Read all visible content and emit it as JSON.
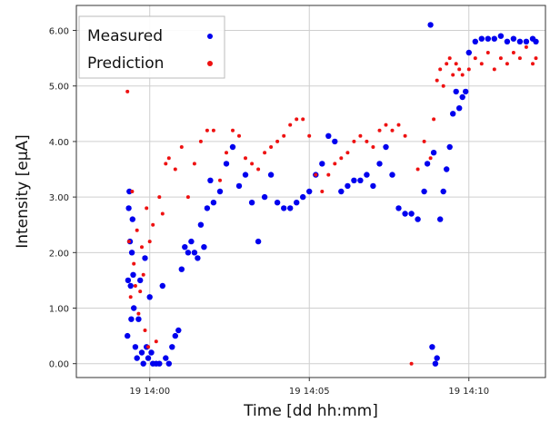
{
  "chart_data": {
    "type": "scatter",
    "xlabel": "Time [dd hh:mm]",
    "ylabel": "Intensity [eμA]",
    "x_unit": "minutes",
    "xlim": [
      -2.3,
      12.4
    ],
    "ylim": [
      -0.25,
      6.45
    ],
    "x_ticks": [
      {
        "value": 0,
        "label": "19 14:00"
      },
      {
        "value": 5,
        "label": "19 14:05"
      },
      {
        "value": 10,
        "label": "19 14:10"
      }
    ],
    "y_ticks": [
      {
        "value": 0,
        "label": "0.00"
      },
      {
        "value": 1,
        "label": "1.00"
      },
      {
        "value": 2,
        "label": "2.00"
      },
      {
        "value": 3,
        "label": "3.00"
      },
      {
        "value": 4,
        "label": "4.00"
      },
      {
        "value": 5,
        "label": "5.00"
      },
      {
        "value": 6,
        "label": "6.00"
      }
    ],
    "grid": true,
    "legend_position": "top-left",
    "series": [
      {
        "name": "Measured",
        "color": "#0000ee",
        "x": [
          -0.7,
          -0.68,
          -0.66,
          -0.64,
          -0.62,
          -0.6,
          -0.58,
          -0.56,
          -0.54,
          -0.52,
          -0.5,
          -0.45,
          -0.4,
          -0.35,
          -0.3,
          -0.25,
          -0.2,
          -0.15,
          -0.1,
          -0.05,
          0,
          0.05,
          0.1,
          0.2,
          0.3,
          0.4,
          0.5,
          0.6,
          0.7,
          0.8,
          0.9,
          1.0,
          1.1,
          1.2,
          1.3,
          1.4,
          1.5,
          1.6,
          1.7,
          1.8,
          1.9,
          2.0,
          2.2,
          2.4,
          2.6,
          2.8,
          3.0,
          3.2,
          3.4,
          3.6,
          3.8,
          4.0,
          4.2,
          4.4,
          4.6,
          4.8,
          5.0,
          5.2,
          5.4,
          5.6,
          5.8,
          6.0,
          6.2,
          6.4,
          6.6,
          6.8,
          7.0,
          7.2,
          7.4,
          7.6,
          7.8,
          8.0,
          8.2,
          8.4,
          8.6,
          8.7,
          8.8,
          8.85,
          8.9,
          8.95,
          9.0,
          9.1,
          9.2,
          9.3,
          9.4,
          9.5,
          9.6,
          9.7,
          9.8,
          9.9,
          10.0,
          10.2,
          10.4,
          10.6,
          10.8,
          11.0,
          11.2,
          11.4,
          11.6,
          11.8,
          12.0,
          12.1
        ],
        "y": [
          0.5,
          1.5,
          2.8,
          3.1,
          2.2,
          1.4,
          0.8,
          2.0,
          2.6,
          1.6,
          1.0,
          0.3,
          0.1,
          0.8,
          1.5,
          0.2,
          0.0,
          1.9,
          0.3,
          0.1,
          1.2,
          0.2,
          0.0,
          0.0,
          0.0,
          1.4,
          0.1,
          0.0,
          0.3,
          0.5,
          0.6,
          1.7,
          2.1,
          2.0,
          2.2,
          2.0,
          1.9,
          2.5,
          2.1,
          2.8,
          3.3,
          2.9,
          3.1,
          3.6,
          3.9,
          3.2,
          3.4,
          2.9,
          2.2,
          3.0,
          3.4,
          2.9,
          2.8,
          2.8,
          2.9,
          3.0,
          3.1,
          3.4,
          3.6,
          4.1,
          4.0,
          3.1,
          3.2,
          3.3,
          3.3,
          3.4,
          3.2,
          3.6,
          3.9,
          3.4,
          2.8,
          2.7,
          2.7,
          2.6,
          3.1,
          3.6,
          6.1,
          0.3,
          3.8,
          0.0,
          0.1,
          2.6,
          3.1,
          3.5,
          3.9,
          4.5,
          4.9,
          4.6,
          4.8,
          4.9,
          5.6,
          5.8,
          5.85,
          5.85,
          5.85,
          5.9,
          5.8,
          5.85,
          5.8,
          5.8,
          5.85,
          5.8
        ]
      },
      {
        "name": "Prediction",
        "color": "#ee1111",
        "x": [
          -0.7,
          -0.65,
          -0.6,
          -0.55,
          -0.5,
          -0.45,
          -0.4,
          -0.35,
          -0.3,
          -0.25,
          -0.2,
          -0.15,
          -0.1,
          -0.05,
          0,
          0.1,
          0.2,
          0.3,
          0.4,
          0.5,
          0.6,
          0.8,
          1.0,
          1.2,
          1.4,
          1.6,
          1.8,
          2.0,
          2.2,
          2.4,
          2.6,
          2.8,
          3.0,
          3.2,
          3.4,
          3.6,
          3.8,
          4.0,
          4.2,
          4.4,
          4.6,
          4.8,
          5.0,
          5.2,
          5.4,
          5.6,
          5.8,
          6.0,
          6.2,
          6.4,
          6.6,
          6.8,
          7.0,
          7.2,
          7.4,
          7.6,
          7.8,
          8.0,
          8.2,
          8.4,
          8.6,
          8.8,
          8.9,
          9.0,
          9.1,
          9.2,
          9.3,
          9.4,
          9.5,
          9.6,
          9.7,
          9.8,
          10.0,
          10.2,
          10.4,
          10.6,
          10.8,
          11.0,
          11.2,
          11.4,
          11.6,
          11.8,
          12.0,
          12.1
        ],
        "y": [
          4.9,
          2.2,
          1.2,
          3.1,
          1.8,
          1.4,
          2.4,
          0.9,
          1.3,
          2.1,
          1.6,
          0.6,
          2.8,
          0.3,
          2.2,
          2.5,
          0.4,
          3.0,
          2.7,
          3.6,
          3.7,
          3.5,
          3.9,
          3.0,
          3.6,
          4.0,
          4.2,
          4.2,
          3.3,
          3.8,
          4.2,
          4.1,
          3.7,
          3.6,
          3.5,
          3.8,
          3.9,
          4.0,
          4.1,
          4.3,
          4.4,
          4.4,
          4.1,
          3.4,
          3.1,
          3.4,
          3.6,
          3.7,
          3.8,
          4.0,
          4.1,
          4.0,
          3.9,
          4.2,
          4.3,
          4.2,
          4.3,
          4.1,
          0.0,
          3.5,
          4.0,
          3.7,
          4.4,
          5.1,
          5.3,
          5.0,
          5.4,
          5.5,
          5.2,
          5.4,
          5.3,
          5.2,
          5.3,
          5.5,
          5.4,
          5.6,
          5.3,
          5.5,
          5.4,
          5.6,
          5.5,
          5.7,
          5.4,
          5.5
        ]
      }
    ]
  }
}
